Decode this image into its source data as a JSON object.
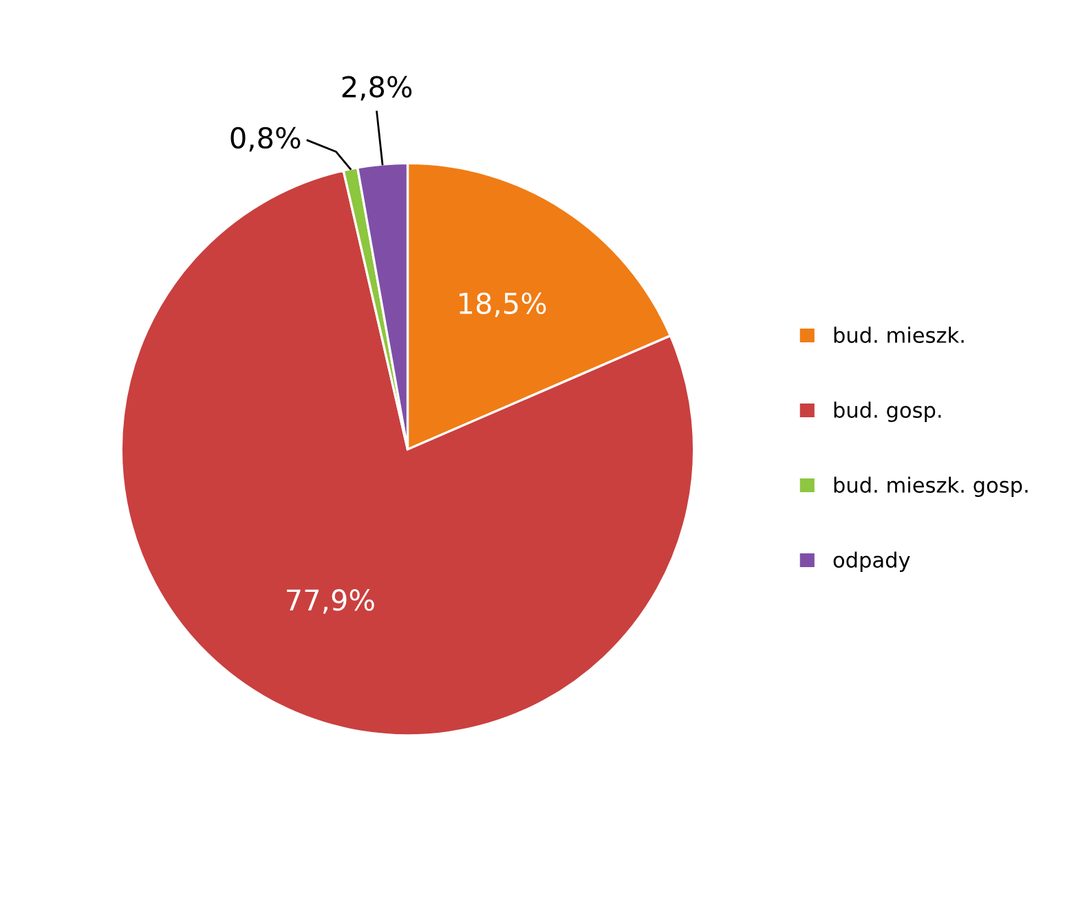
{
  "chart_data": {
    "type": "pie",
    "categories": [
      "bud. mieszk.",
      "bud. gosp.",
      "bud. mieszk. gosp.",
      "odpady"
    ],
    "values": [
      18.5,
      77.9,
      0.8,
      2.8
    ],
    "colors": [
      "#f07c15",
      "#c9403f",
      "#8dc63f",
      "#7f4fa8"
    ],
    "value_labels": [
      "18,5%",
      "77,9%",
      "0,8%",
      "2,8%"
    ],
    "legend": "right"
  }
}
